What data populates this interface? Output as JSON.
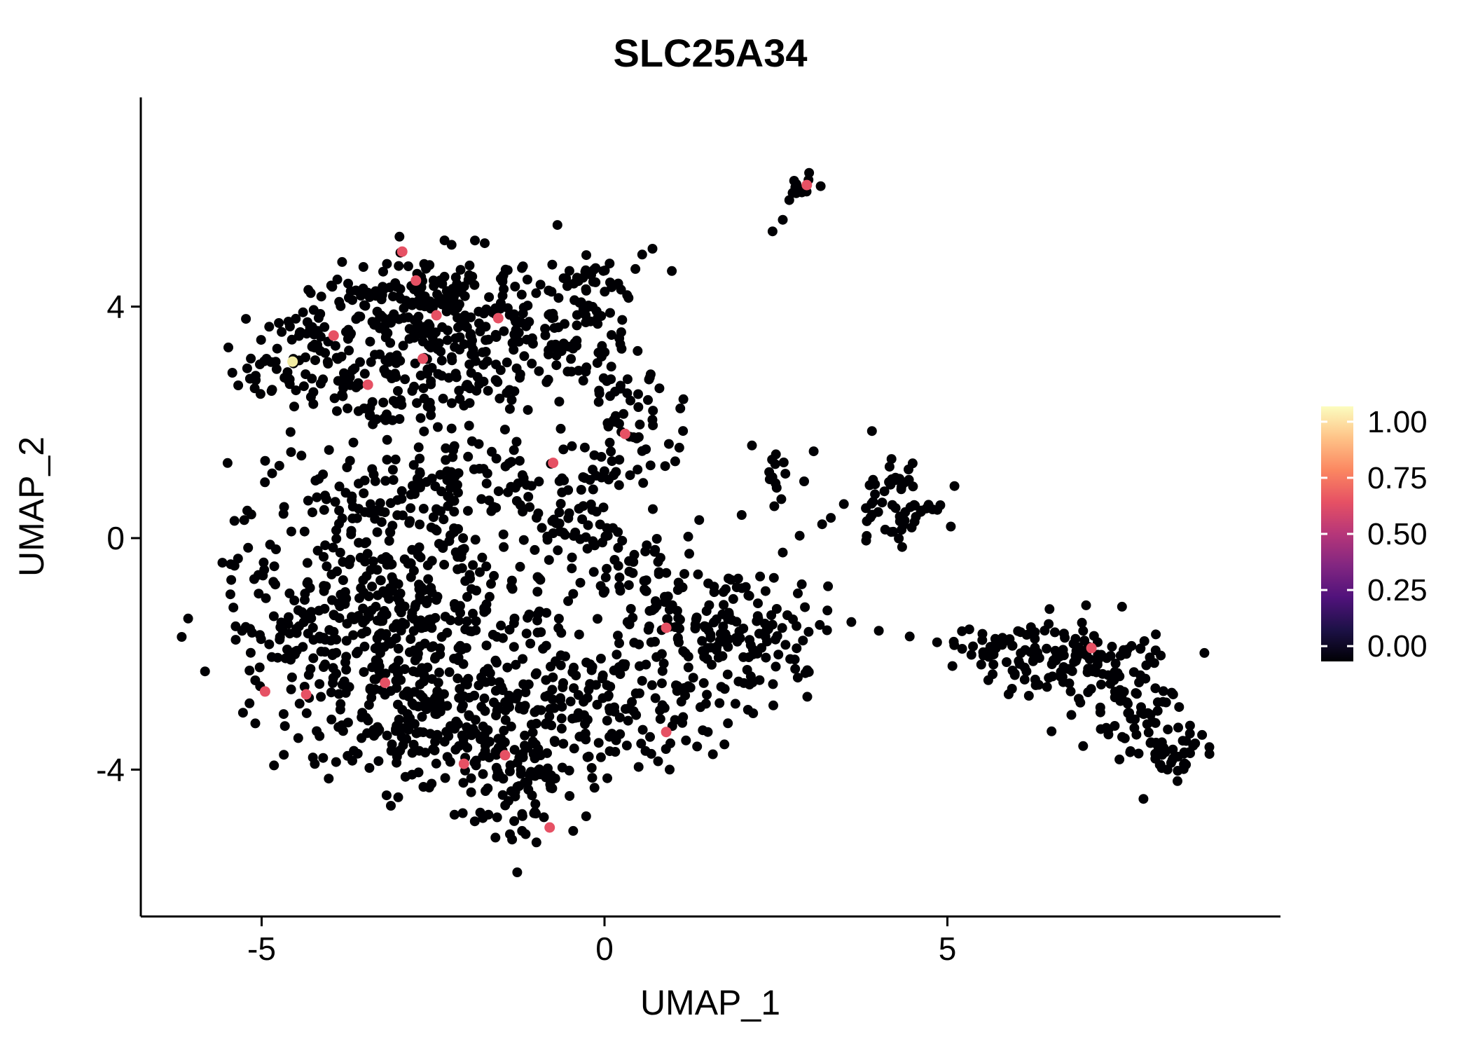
{
  "page": {
    "background": "#ffffff"
  },
  "chart_data": {
    "type": "scatter",
    "title": "SLC25A34",
    "xlabel": "UMAP_1",
    "ylabel": "UMAP_2",
    "x_ticks": [
      -5,
      0,
      5
    ],
    "y_ticks": [
      -4,
      0,
      4
    ],
    "x_range": [
      -6.8,
      9.9
    ],
    "y_range": [
      -6.6,
      7.6
    ],
    "grid": false,
    "point_color": "#000004",
    "point_radius": 7,
    "seed": 1337,
    "legend_position": "right",
    "colorbar": {
      "title": "",
      "labels": [
        "1.00",
        "0.75",
        "0.50",
        "0.25",
        "0.00"
      ],
      "label_values": [
        1.0,
        0.75,
        0.5,
        0.25,
        0.0
      ],
      "label_fractions_from_top": [
        0.06,
        0.28,
        0.5,
        0.72,
        0.94
      ],
      "stops": [
        {
          "offset": 0.0,
          "color": "#000004"
        },
        {
          "offset": 0.125,
          "color": "#1D1147"
        },
        {
          "offset": 0.25,
          "color": "#50127B"
        },
        {
          "offset": 0.375,
          "color": "#822681"
        },
        {
          "offset": 0.5,
          "color": "#B63679"
        },
        {
          "offset": 0.625,
          "color": "#E65164"
        },
        {
          "offset": 0.75,
          "color": "#FB8761"
        },
        {
          "offset": 0.875,
          "color": "#FEC287"
        },
        {
          "offset": 1.0,
          "color": "#FCFDBF"
        }
      ]
    },
    "clusters": [
      {
        "name": "upper-left-a",
        "cx": -3.6,
        "cy": 3.35,
        "sx": 0.7,
        "sy": 0.55,
        "n": 110
      },
      {
        "name": "upper-left-b",
        "cx": -2.5,
        "cy": 4.1,
        "sx": 0.75,
        "sy": 0.45,
        "n": 140
      },
      {
        "name": "upper-left-c",
        "cx": -1.7,
        "cy": 3.2,
        "sx": 0.7,
        "sy": 0.55,
        "n": 110
      },
      {
        "name": "upper-left-d",
        "cx": -0.65,
        "cy": 3.6,
        "sx": 0.5,
        "sy": 0.55,
        "n": 70
      },
      {
        "name": "upper-left-e",
        "cx": -4.5,
        "cy": 2.9,
        "sx": 0.45,
        "sy": 0.3,
        "n": 40
      },
      {
        "name": "upper-left-arm",
        "cx": -0.15,
        "cy": 4.25,
        "sx": 0.3,
        "sy": 0.35,
        "n": 22
      },
      {
        "name": "upper-left-f",
        "cx": 0.2,
        "cy": 2.7,
        "sx": 0.45,
        "sy": 0.5,
        "n": 30
      },
      {
        "name": "upper-left-g",
        "cx": -2.9,
        "cy": 2.4,
        "sx": 0.8,
        "sy": 0.35,
        "n": 45
      },
      {
        "name": "top-small",
        "cx": 2.85,
        "cy": 6.05,
        "sx": 0.16,
        "sy": 0.14,
        "n": 15
      },
      {
        "name": "main-a",
        "cx": -4.25,
        "cy": -1.6,
        "sx": 0.75,
        "sy": 0.85,
        "n": 150
      },
      {
        "name": "main-b",
        "cx": -3.2,
        "cy": -2.6,
        "sx": 0.75,
        "sy": 0.75,
        "n": 150
      },
      {
        "name": "main-c",
        "cx": -2.0,
        "cy": -3.5,
        "sx": 0.75,
        "sy": 0.65,
        "n": 130
      },
      {
        "name": "main-d",
        "cx": -1.25,
        "cy": -4.45,
        "sx": 0.5,
        "sy": 0.4,
        "n": 60
      },
      {
        "name": "main-e",
        "cx": -2.7,
        "cy": -0.9,
        "sx": 0.85,
        "sy": 0.75,
        "n": 130
      },
      {
        "name": "main-f",
        "cx": -1.3,
        "cy": -1.9,
        "sx": 0.85,
        "sy": 0.85,
        "n": 100
      },
      {
        "name": "main-g",
        "cx": -3.6,
        "cy": 0.55,
        "sx": 0.75,
        "sy": 0.65,
        "n": 100
      },
      {
        "name": "main-h",
        "cx": -1.9,
        "cy": 0.85,
        "sx": 0.65,
        "sy": 0.55,
        "n": 80
      },
      {
        "name": "main-i",
        "cx": -0.5,
        "cy": 0.3,
        "sx": 0.55,
        "sy": 0.65,
        "n": 70
      },
      {
        "name": "main-j",
        "cx": -0.35,
        "cy": -3.2,
        "sx": 0.65,
        "sy": 0.55,
        "n": 80
      },
      {
        "name": "main-k",
        "cx": 0.5,
        "cy": -0.9,
        "sx": 0.55,
        "sy": 0.65,
        "n": 60
      },
      {
        "name": "main-l",
        "cx": 1.6,
        "cy": -1.7,
        "sx": 0.65,
        "sy": 0.55,
        "n": 100
      },
      {
        "name": "main-m",
        "cx": 2.4,
        "cy": -1.95,
        "sx": 0.4,
        "sy": 0.45,
        "n": 45
      },
      {
        "name": "main-n",
        "cx": 0.6,
        "cy": -2.75,
        "sx": 0.5,
        "sy": 0.5,
        "n": 55
      },
      {
        "name": "main-neck",
        "cx": 0.15,
        "cy": 1.5,
        "sx": 0.45,
        "sy": 0.35,
        "n": 35
      },
      {
        "name": "mid-right-a",
        "cx": 4.4,
        "cy": 0.75,
        "sx": 0.3,
        "sy": 0.33,
        "n": 45
      },
      {
        "name": "mid-right-b",
        "cx": 4.0,
        "cy": 0.35,
        "sx": 0.22,
        "sy": 0.22,
        "n": 12
      },
      {
        "name": "mid-right-c",
        "cx": 2.45,
        "cy": 1.05,
        "sx": 0.2,
        "sy": 0.26,
        "n": 13
      },
      {
        "name": "mid-right-sparse",
        "cx": 3.1,
        "cy": 0.1,
        "sx": 0.55,
        "sy": 0.6,
        "n": 8
      },
      {
        "name": "lower-right-a",
        "cx": 6.3,
        "cy": -2.0,
        "sx": 0.5,
        "sy": 0.28,
        "n": 65
      },
      {
        "name": "lower-right-b",
        "cx": 7.3,
        "cy": -2.1,
        "sx": 0.5,
        "sy": 0.33,
        "n": 65
      },
      {
        "name": "lower-right-c",
        "cx": 7.9,
        "cy": -2.95,
        "sx": 0.38,
        "sy": 0.4,
        "n": 50
      },
      {
        "name": "lower-right-d",
        "cx": 8.3,
        "cy": -3.65,
        "sx": 0.28,
        "sy": 0.33,
        "n": 40
      },
      {
        "name": "lower-right-tip",
        "cx": 5.6,
        "cy": -1.85,
        "sx": 0.25,
        "sy": 0.18,
        "n": 18
      },
      {
        "name": "lower-right-sparse",
        "cx": 7.1,
        "cy": -2.9,
        "sx": 0.5,
        "sy": 0.4,
        "n": 14
      }
    ],
    "extra_points": [
      [
        0.2,
        4.4
      ],
      [
        0.45,
        4.65
      ],
      [
        0.55,
        4.9
      ],
      [
        0.7,
        5.0
      ],
      [
        0.35,
        4.15
      ],
      [
        3.25,
        -1.25
      ],
      [
        3.6,
        -1.45
      ],
      [
        4.0,
        -1.6
      ],
      [
        4.45,
        -1.7
      ],
      [
        4.85,
        -1.8
      ],
      [
        5.1,
        -1.85
      ],
      [
        2.0,
        0.4
      ],
      [
        2.6,
        -0.25
      ],
      [
        3.05,
        1.5
      ],
      [
        3.3,
        0.35
      ],
      [
        2.15,
        1.6
      ],
      [
        3.9,
        1.85
      ],
      [
        5.05,
        0.2
      ],
      [
        2.6,
        5.5
      ],
      [
        2.45,
        5.3
      ],
      [
        1.15,
        2.4
      ],
      [
        0.95,
        -4.0
      ],
      [
        1.35,
        -3.6
      ],
      [
        1.8,
        -3.2
      ]
    ],
    "highlight_points": [
      {
        "x": -2.95,
        "y": 4.95,
        "value": 0.65,
        "color": "#E65164"
      },
      {
        "x": -2.75,
        "y": 4.45,
        "value": 0.65,
        "color": "#E65164"
      },
      {
        "x": -2.45,
        "y": 3.85,
        "value": 0.65,
        "color": "#E65164"
      },
      {
        "x": -1.55,
        "y": 3.8,
        "value": 0.65,
        "color": "#E65164"
      },
      {
        "x": -3.95,
        "y": 3.5,
        "value": 0.65,
        "color": "#E65164"
      },
      {
        "x": -2.65,
        "y": 3.1,
        "value": 0.65,
        "color": "#E65164"
      },
      {
        "x": -4.55,
        "y": 3.05,
        "value": 0.95,
        "color": "#F2ECA3"
      },
      {
        "x": -3.45,
        "y": 2.65,
        "value": 0.65,
        "color": "#E65164"
      },
      {
        "x": 0.3,
        "y": 1.8,
        "value": 0.65,
        "color": "#E65164"
      },
      {
        "x": -0.75,
        "y": 1.3,
        "value": 0.65,
        "color": "#E65164"
      },
      {
        "x": 2.95,
        "y": 6.1,
        "value": 0.65,
        "color": "#E65164"
      },
      {
        "x": 0.9,
        "y": -1.55,
        "value": 0.65,
        "color": "#E65164"
      },
      {
        "x": -3.2,
        "y": -2.5,
        "value": 0.65,
        "color": "#E65164"
      },
      {
        "x": -4.35,
        "y": -2.7,
        "value": 0.65,
        "color": "#E65164"
      },
      {
        "x": -4.95,
        "y": -2.65,
        "value": 0.65,
        "color": "#E65164"
      },
      {
        "x": 0.9,
        "y": -3.35,
        "value": 0.65,
        "color": "#E65164"
      },
      {
        "x": -2.05,
        "y": -3.9,
        "value": 0.65,
        "color": "#E65164"
      },
      {
        "x": -1.45,
        "y": -3.75,
        "value": 0.65,
        "color": "#E65164"
      },
      {
        "x": -0.8,
        "y": -5.0,
        "value": 0.65,
        "color": "#E65164"
      },
      {
        "x": 7.1,
        "y": -1.9,
        "value": 0.65,
        "color": "#E65164"
      }
    ]
  }
}
